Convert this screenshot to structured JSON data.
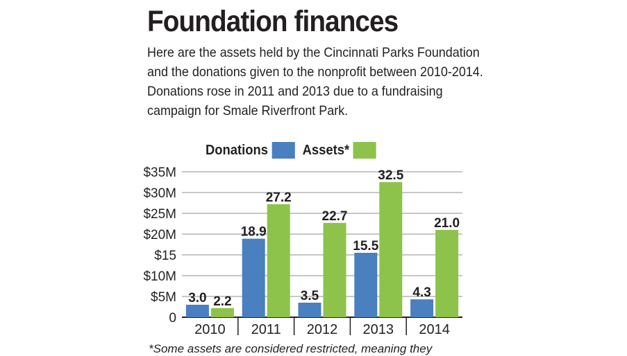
{
  "header": {
    "title": "Foundation finances",
    "description": "Here are the assets held by the Cincinnati Parks Foundation and the donations given to the nonprofit between 2010-2014. Donations rose in 2011 and 2013 due to a fundraising campaign for Smale Riverfront Park."
  },
  "legend": {
    "donations_label": "Donations",
    "assets_label": "Assets*"
  },
  "footnote": "*Some assets are considered restricted, meaning they",
  "colors": {
    "donations": "#4a7fc0",
    "assets": "#8dc34a",
    "text": "#231f20",
    "grid": "#8c8c8c"
  },
  "chart_data": {
    "type": "bar",
    "categories": [
      "2010",
      "2011",
      "2012",
      "2013",
      "2014"
    ],
    "series": [
      {
        "name": "Donations",
        "values": [
          3.0,
          18.9,
          3.5,
          15.5,
          4.3
        ],
        "labels": [
          "3.0",
          "18.9",
          "3.5",
          "15.5",
          "4.3"
        ]
      },
      {
        "name": "Assets*",
        "values": [
          2.2,
          27.2,
          22.7,
          32.5,
          21.0
        ],
        "labels": [
          "2.2",
          "27.2",
          "22.7",
          "32.5",
          "21.0"
        ]
      }
    ],
    "y_ticks": [
      {
        "value": 0,
        "label": "0"
      },
      {
        "value": 5,
        "label": "$5M"
      },
      {
        "value": 10,
        "label": "$10M"
      },
      {
        "value": 15,
        "label": "$15"
      },
      {
        "value": 20,
        "label": "$20M"
      },
      {
        "value": 25,
        "label": "$25M"
      },
      {
        "value": 30,
        "label": "$30M"
      },
      {
        "value": 35,
        "label": "$35M"
      }
    ],
    "ylim": [
      0,
      35
    ],
    "grid": true,
    "legend_position": "top"
  }
}
